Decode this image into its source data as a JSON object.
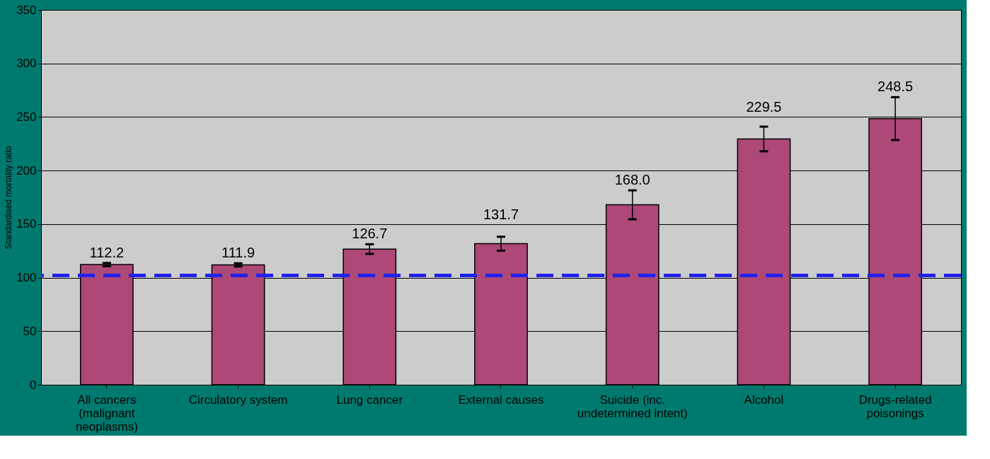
{
  "chart_data": {
    "type": "bar",
    "ylabel": "Standardised mortality ratio",
    "categories": [
      "All cancers (malignant neoplasms)",
      "Circulatory system",
      "Lung cancer",
      "External causes",
      "Suicide (inc. undetermined intent)",
      "Alcohol",
      "Drugs-related poisonings"
    ],
    "values": [
      112.2,
      111.9,
      126.7,
      131.7,
      168.0,
      229.5,
      248.5
    ],
    "errors": [
      1.5,
      1.5,
      4.5,
      6.5,
      13.5,
      11.5,
      20
    ],
    "color": "#ad4877",
    "value_labels": [
      "112.2",
      "111.9",
      "126.7",
      "131.7",
      "168.0",
      "229.5",
      "248.5"
    ],
    "ylim": [
      0,
      350
    ],
    "yticks": [
      0,
      50,
      100,
      150,
      200,
      250,
      300,
      350
    ],
    "grid": "y",
    "ref_lines": [
      {
        "axis": "y",
        "value": 102,
        "color": "#2222ee",
        "line_style": "dashed"
      }
    ]
  }
}
